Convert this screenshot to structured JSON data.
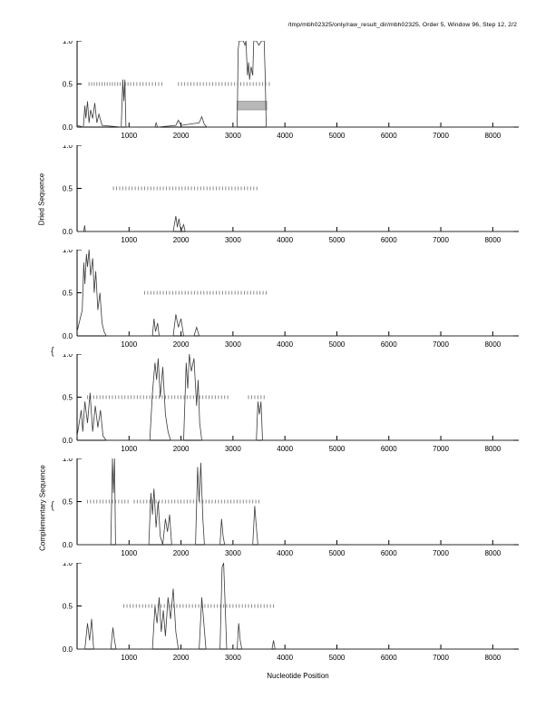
{
  "chart_title": "/tmp/mbh02325/only/raw_result_dir/mbh02325, Order 5, Window 96, Step 12, 2/2",
  "xlabel": "Nucleotide Position",
  "group_labels": {
    "dried": "Dried Sequence",
    "complementary": "Complementary Sequence",
    "brace_glyph": "{"
  },
  "chart_data": {
    "type": "line",
    "xlim": [
      0,
      8500
    ],
    "ylim": [
      0.0,
      1.0
    ],
    "x_ticks": [
      1000,
      2000,
      3000,
      4000,
      5000,
      6000,
      7000,
      8000
    ],
    "y_ticks": [
      "0.0",
      "0.5",
      "1.0"
    ],
    "legend": "none",
    "grid": false,
    "panels": [
      {
        "name": "dried-1",
        "trace": [
          [
            0,
            0.02
          ],
          [
            120,
            0
          ],
          [
            150,
            0.25
          ],
          [
            170,
            0.1
          ],
          [
            200,
            0.3
          ],
          [
            230,
            0.05
          ],
          [
            260,
            0.2
          ],
          [
            300,
            0.1
          ],
          [
            340,
            0.28
          ],
          [
            380,
            0.05
          ],
          [
            420,
            0.15
          ],
          [
            480,
            0.02
          ],
          [
            850,
            0
          ],
          [
            880,
            0.55
          ],
          [
            900,
            0.3
          ],
          [
            920,
            0.55
          ],
          [
            940,
            0
          ],
          [
            1500,
            0
          ],
          [
            1520,
            0.05
          ],
          [
            1550,
            0
          ],
          [
            1900,
            0.02
          ],
          [
            1950,
            0.08
          ],
          [
            2000,
            0.02
          ],
          [
            2350,
            0.05
          ],
          [
            2400,
            0.12
          ],
          [
            2450,
            0.03
          ],
          [
            2500,
            0
          ],
          [
            3080,
            0
          ],
          [
            3100,
            0.9
          ],
          [
            3120,
            1.0
          ],
          [
            3200,
            1.0
          ],
          [
            3230,
            0.95
          ],
          [
            3250,
            1.0
          ],
          [
            3280,
            0.6
          ],
          [
            3300,
            0.75
          ],
          [
            3320,
            0.55
          ],
          [
            3350,
            0.7
          ],
          [
            3380,
            0.6
          ],
          [
            3400,
            1.0
          ],
          [
            3450,
            1.0
          ],
          [
            3500,
            0.95
          ],
          [
            3550,
            1.0
          ],
          [
            3600,
            1.0
          ],
          [
            3620,
            0.6
          ],
          [
            3640,
            0
          ],
          [
            8400,
            0
          ]
        ],
        "rug": [
          230,
          280,
          330,
          380,
          430,
          480,
          530,
          580,
          630,
          680,
          730,
          780,
          830,
          880,
          930,
          980,
          1030,
          1090,
          1150,
          1210,
          1270,
          1330,
          1390,
          1450,
          1510,
          1570,
          1630,
          1950,
          2010,
          2070,
          2130,
          2190,
          2250,
          2310,
          2370,
          2430,
          2490,
          2550,
          2610,
          2670,
          2730,
          2790,
          2850,
          2910,
          2970,
          3030,
          3090,
          3150,
          3210,
          3270,
          3330,
          3390,
          3450,
          3510,
          3570,
          3630,
          3700
        ],
        "highlight": {
          "x0": 3080,
          "x1": 3650,
          "y0": 0.2,
          "y1": 0.3
        }
      },
      {
        "name": "dried-2",
        "trace": [
          [
            0,
            0
          ],
          [
            130,
            0
          ],
          [
            145,
            0.07
          ],
          [
            160,
            0
          ],
          [
            1850,
            0
          ],
          [
            1900,
            0.18
          ],
          [
            1930,
            0.05
          ],
          [
            1960,
            0.15
          ],
          [
            2000,
            0
          ],
          [
            2050,
            0.08
          ],
          [
            2080,
            0
          ],
          [
            8400,
            0
          ]
        ],
        "rug": [
          700,
          760,
          820,
          880,
          940,
          1000,
          1060,
          1120,
          1180,
          1240,
          1300,
          1360,
          1420,
          1480,
          1540,
          1600,
          1660,
          1720,
          1780,
          1840,
          1900,
          1960,
          2020,
          2080,
          2140,
          2200,
          2260,
          2320,
          2380,
          2440,
          2500,
          2560,
          2620,
          2680,
          2740,
          2800,
          2860,
          2920,
          2980,
          3040,
          3100,
          3160,
          3220,
          3280,
          3340,
          3400,
          3460
        ],
        "highlight": null
      },
      {
        "name": "dried-3",
        "trace": [
          [
            0,
            0.05
          ],
          [
            100,
            0.3
          ],
          [
            130,
            0.85
          ],
          [
            150,
            0.6
          ],
          [
            180,
            0.95
          ],
          [
            200,
            0.8
          ],
          [
            230,
            1.0
          ],
          [
            260,
            0.7
          ],
          [
            300,
            0.9
          ],
          [
            330,
            0.5
          ],
          [
            360,
            0.75
          ],
          [
            400,
            0.3
          ],
          [
            440,
            0.5
          ],
          [
            480,
            0.15
          ],
          [
            520,
            0.05
          ],
          [
            560,
            0
          ],
          [
            1450,
            0
          ],
          [
            1480,
            0.2
          ],
          [
            1510,
            0.05
          ],
          [
            1550,
            0.15
          ],
          [
            1580,
            0
          ],
          [
            1850,
            0
          ],
          [
            1900,
            0.25
          ],
          [
            1950,
            0.1
          ],
          [
            2000,
            0.2
          ],
          [
            2050,
            0
          ],
          [
            2250,
            0
          ],
          [
            2300,
            0.1
          ],
          [
            2350,
            0
          ],
          [
            8400,
            0
          ]
        ],
        "rug": [
          1300,
          1360,
          1420,
          1480,
          1540,
          1600,
          1660,
          1720,
          1780,
          1840,
          1900,
          1960,
          2020,
          2080,
          2140,
          2200,
          2260,
          2320,
          2380,
          2440,
          2500,
          2560,
          2620,
          2680,
          2740,
          2800,
          2860,
          2920,
          2980,
          3040,
          3100,
          3160,
          3220,
          3280,
          3340,
          3400,
          3460,
          3520,
          3580,
          3640
        ],
        "highlight": null
      },
      {
        "name": "complementary-1",
        "trace": [
          [
            0,
            0.05
          ],
          [
            80,
            0.35
          ],
          [
            110,
            0.1
          ],
          [
            150,
            0.45
          ],
          [
            200,
            0.2
          ],
          [
            250,
            0.55
          ],
          [
            300,
            0.1
          ],
          [
            350,
            0.4
          ],
          [
            400,
            0.15
          ],
          [
            450,
            0.35
          ],
          [
            500,
            0.05
          ],
          [
            560,
            0
          ],
          [
            1400,
            0
          ],
          [
            1450,
            0.55
          ],
          [
            1500,
            0.9
          ],
          [
            1530,
            0.7
          ],
          [
            1560,
            0.95
          ],
          [
            1600,
            0.5
          ],
          [
            1650,
            0.85
          ],
          [
            1700,
            0.3
          ],
          [
            1750,
            0.1
          ],
          [
            1800,
            0
          ],
          [
            2050,
            0
          ],
          [
            2100,
            0.9
          ],
          [
            2130,
            0.6
          ],
          [
            2160,
            1.0
          ],
          [
            2200,
            0.8
          ],
          [
            2250,
            0.95
          ],
          [
            2300,
            0.4
          ],
          [
            2330,
            0.7
          ],
          [
            2360,
            0.2
          ],
          [
            2400,
            0
          ],
          [
            3450,
            0
          ],
          [
            3480,
            0.45
          ],
          [
            3510,
            0.3
          ],
          [
            3540,
            0.45
          ],
          [
            3570,
            0
          ],
          [
            8400,
            0
          ]
        ],
        "rug": [
          200,
          260,
          320,
          380,
          440,
          500,
          560,
          620,
          680,
          740,
          800,
          860,
          920,
          980,
          1040,
          1100,
          1160,
          1220,
          1280,
          1340,
          1400,
          1460,
          1520,
          1580,
          1640,
          1700,
          1760,
          1820,
          1880,
          1940,
          2000,
          2060,
          2120,
          2180,
          2240,
          2300,
          2360,
          2420,
          2480,
          2540,
          2600,
          2660,
          2720,
          2780,
          2840,
          2900,
          3300,
          3360,
          3420,
          3480,
          3540,
          3600
        ],
        "highlight": null
      },
      {
        "name": "complementary-2",
        "trace": [
          [
            0,
            0
          ],
          [
            650,
            0
          ],
          [
            680,
            1.0
          ],
          [
            700,
            0.6
          ],
          [
            720,
            1.0
          ],
          [
            740,
            0
          ],
          [
            1380,
            0
          ],
          [
            1420,
            0.6
          ],
          [
            1450,
            0.35
          ],
          [
            1480,
            0.65
          ],
          [
            1520,
            0.2
          ],
          [
            1560,
            0.5
          ],
          [
            1600,
            0.1
          ],
          [
            1650,
            0
          ],
          [
            1700,
            0.3
          ],
          [
            1740,
            0.15
          ],
          [
            1780,
            0.35
          ],
          [
            1820,
            0
          ],
          [
            2280,
            0
          ],
          [
            2320,
            0.9
          ],
          [
            2350,
            0.5
          ],
          [
            2380,
            0.95
          ],
          [
            2420,
            0.3
          ],
          [
            2450,
            0
          ],
          [
            2750,
            0
          ],
          [
            2780,
            0.3
          ],
          [
            2810,
            0.1
          ],
          [
            2840,
            0
          ],
          [
            3380,
            0
          ],
          [
            3420,
            0.45
          ],
          [
            3450,
            0.2
          ],
          [
            3480,
            0
          ],
          [
            8400,
            0
          ]
        ],
        "rug": [
          200,
          260,
          320,
          380,
          440,
          500,
          560,
          620,
          680,
          740,
          800,
          860,
          920,
          980,
          1100,
          1160,
          1220,
          1280,
          1340,
          1400,
          1460,
          1520,
          1580,
          1640,
          1700,
          1760,
          1820,
          1880,
          1940,
          2000,
          2060,
          2120,
          2180,
          2240,
          2300,
          2360,
          2420,
          2480,
          2540,
          2600,
          2660,
          2720,
          2780,
          2840,
          2900,
          2960,
          3020,
          3080,
          3140,
          3200,
          3260,
          3320,
          3380,
          3440,
          3500
        ],
        "highlight": null
      },
      {
        "name": "complementary-3",
        "trace": [
          [
            0,
            0
          ],
          [
            150,
            0
          ],
          [
            200,
            0.3
          ],
          [
            240,
            0.1
          ],
          [
            280,
            0.35
          ],
          [
            320,
            0
          ],
          [
            650,
            0
          ],
          [
            690,
            0.25
          ],
          [
            720,
            0.1
          ],
          [
            750,
            0
          ],
          [
            1450,
            0
          ],
          [
            1500,
            0.5
          ],
          [
            1540,
            0.3
          ],
          [
            1580,
            0.6
          ],
          [
            1620,
            0.2
          ],
          [
            1660,
            0.45
          ],
          [
            1700,
            0.15
          ],
          [
            1750,
            0.6
          ],
          [
            1800,
            0.35
          ],
          [
            1850,
            0.7
          ],
          [
            1900,
            0.2
          ],
          [
            1950,
            0
          ],
          [
            2350,
            0
          ],
          [
            2400,
            0.6
          ],
          [
            2440,
            0.3
          ],
          [
            2480,
            0
          ],
          [
            2750,
            0
          ],
          [
            2790,
            0.95
          ],
          [
            2820,
            1.0
          ],
          [
            2850,
            0.5
          ],
          [
            2880,
            0
          ],
          [
            3080,
            0
          ],
          [
            3110,
            0.3
          ],
          [
            3140,
            0.1
          ],
          [
            3170,
            0
          ],
          [
            3750,
            0
          ],
          [
            3780,
            0.1
          ],
          [
            3810,
            0
          ],
          [
            8400,
            0
          ]
        ],
        "rug": [
          900,
          960,
          1020,
          1080,
          1140,
          1200,
          1260,
          1320,
          1380,
          1440,
          1500,
          1560,
          1620,
          1680,
          1740,
          1800,
          1860,
          1920,
          1980,
          2040,
          2100,
          2160,
          2220,
          2280,
          2340,
          2400,
          2460,
          2520,
          2580,
          2640,
          2700,
          2760,
          2820,
          2880,
          2940,
          3000,
          3060,
          3120,
          3180,
          3240,
          3300,
          3360,
          3420,
          3480,
          3540,
          3600,
          3660,
          3720,
          3780
        ],
        "highlight": null
      }
    ]
  }
}
